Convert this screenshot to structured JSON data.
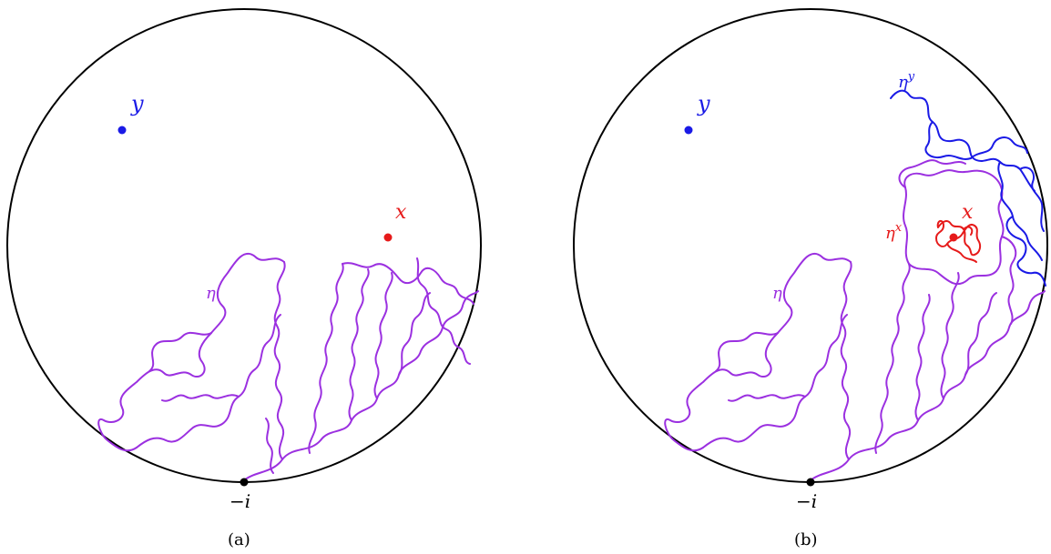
{
  "panels": [
    {
      "caption": "(a)",
      "points": {
        "y": {
          "label": "y",
          "color": "#1a1ae6"
        },
        "x": {
          "label": "x",
          "color": "#e61a1a"
        },
        "boundary": {
          "label": "−i",
          "color": "#000000"
        }
      },
      "curves": {
        "eta": {
          "label": "η",
          "color": "#9b30e0"
        }
      }
    },
    {
      "caption": "(b)",
      "points": {
        "y": {
          "label": "y",
          "color": "#1a1ae6"
        },
        "x": {
          "label": "x",
          "color": "#e61a1a"
        },
        "boundary": {
          "label": "−i",
          "color": "#000000"
        }
      },
      "curves": {
        "eta": {
          "label": "η",
          "color": "#9b30e0"
        },
        "eta_x": {
          "label": "η",
          "sup": "x",
          "color": "#e61a1a"
        },
        "eta_y": {
          "label": "η",
          "sup": "y",
          "color": "#1a1ae6"
        }
      }
    }
  ]
}
